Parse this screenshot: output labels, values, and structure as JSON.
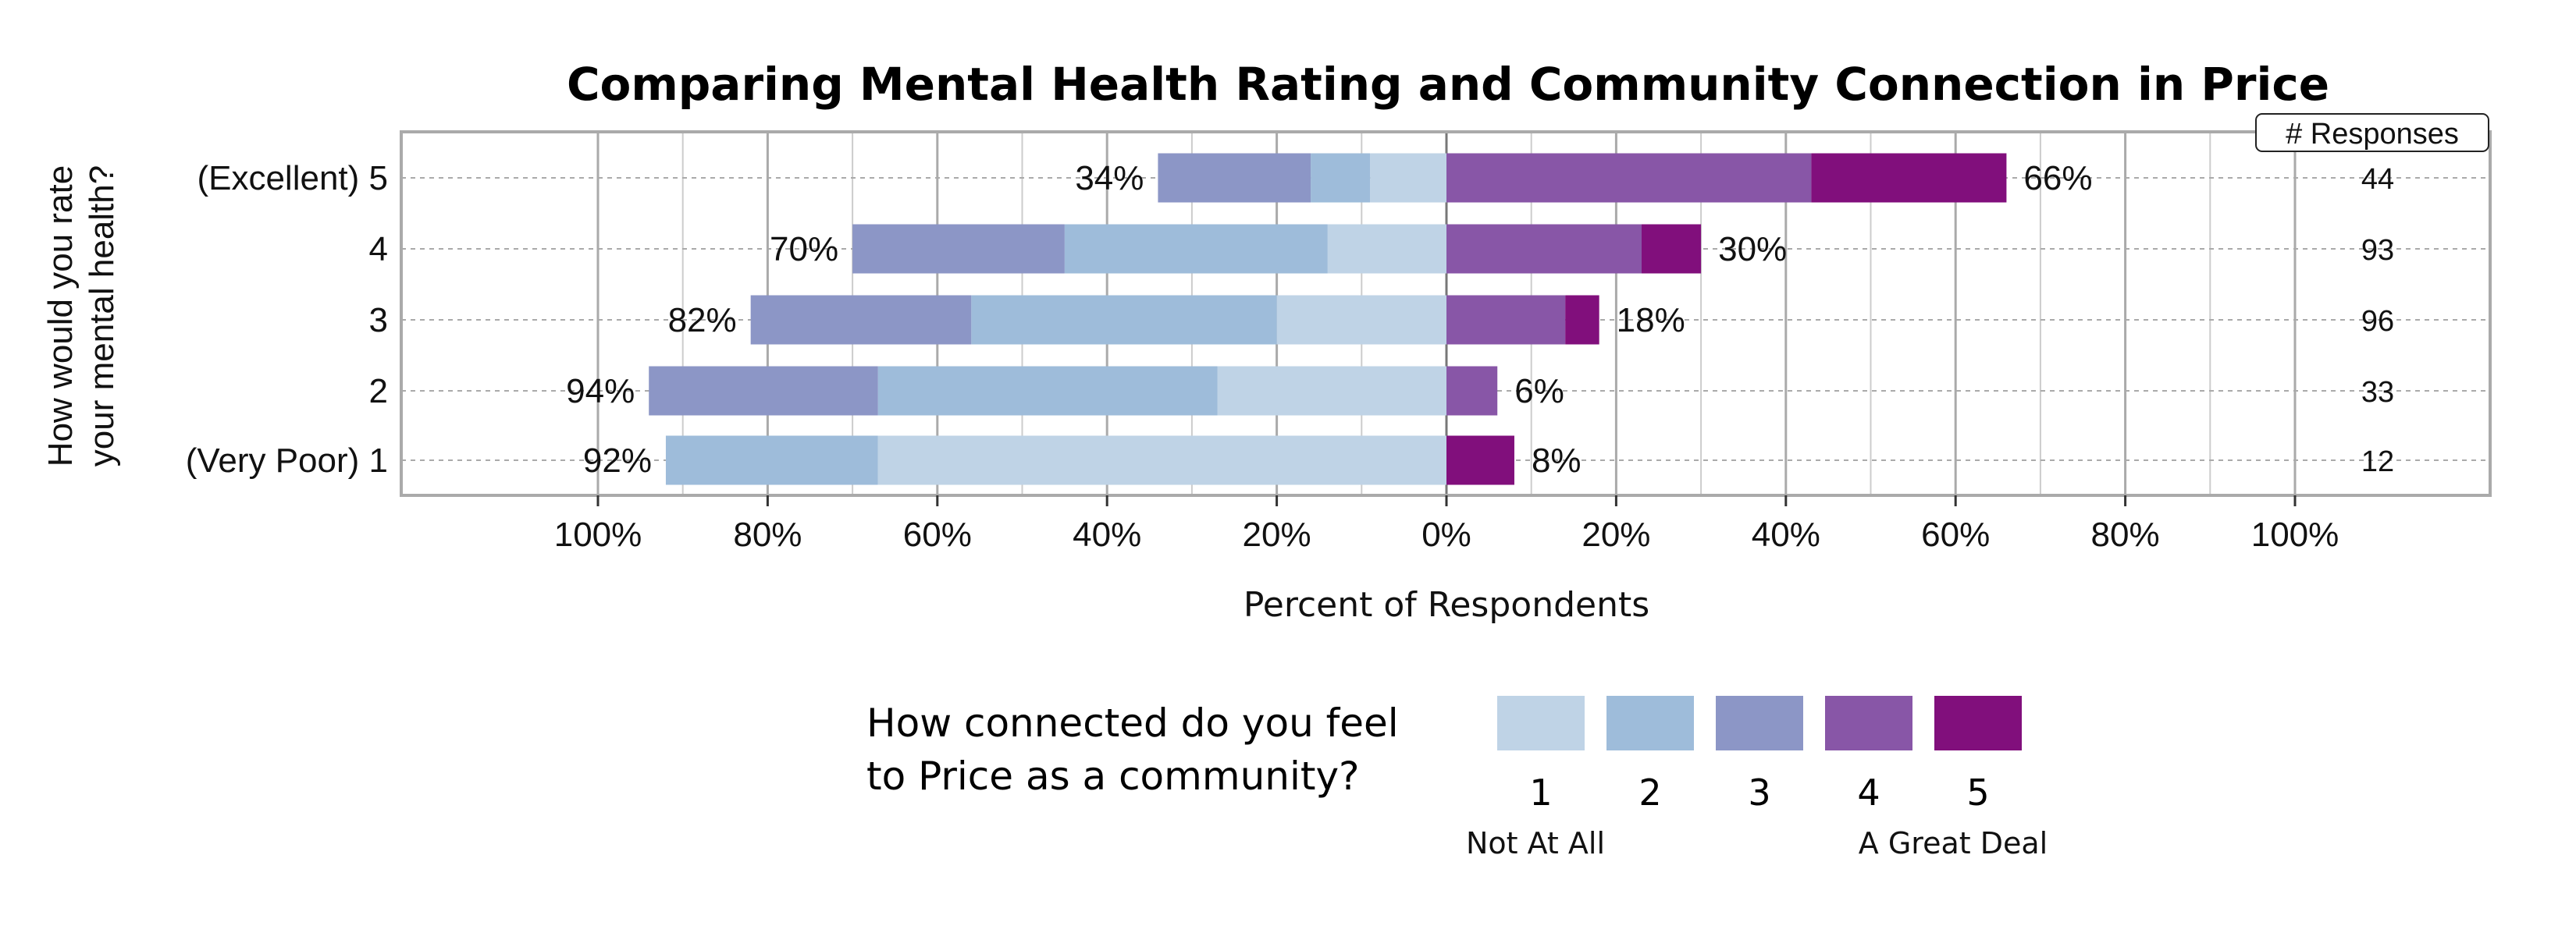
{
  "chart_data": {
    "type": "bar",
    "subtype": "diverging-stacked-horizontal",
    "title": "Comparing Mental Health Rating and Community Connection in Price",
    "ylabel": "How would you rate your mental health?",
    "xlabel": "Percent of Respondents",
    "xlim": [
      -100,
      100
    ],
    "xticks": [
      "100%",
      "80%",
      "60%",
      "40%",
      "20%",
      "0%",
      "20%",
      "40%",
      "60%",
      "80%",
      "100%"
    ],
    "grid": true,
    "responses_header": "# Responses",
    "categories": [
      "(Excellent) 5",
      "4",
      "3",
      "2",
      "(Very Poor) 1"
    ],
    "series": [
      {
        "name": "1",
        "color": "#bfd3e6",
        "side": "negative",
        "values": [
          9,
          14,
          20,
          27,
          67
        ]
      },
      {
        "name": "2",
        "color": "#9ebcda",
        "side": "negative",
        "values": [
          7,
          31,
          36,
          40,
          25
        ]
      },
      {
        "name": "3",
        "color": "#8c96c6",
        "side": "negative",
        "values": [
          18,
          25,
          26,
          27,
          0
        ]
      },
      {
        "name": "4",
        "color": "#8856a7",
        "side": "positive",
        "values": [
          43,
          23,
          14,
          6,
          0
        ]
      },
      {
        "name": "5",
        "color": "#810f7c",
        "side": "positive",
        "values": [
          23,
          7,
          4,
          0,
          8
        ]
      }
    ],
    "negative_totals": [
      "34%",
      "70%",
      "82%",
      "94%",
      "92%"
    ],
    "positive_totals": [
      "66%",
      "30%",
      "18%",
      "6%",
      "8%"
    ],
    "responses": [
      "44",
      "93",
      "96",
      "33",
      "12"
    ],
    "legend": {
      "title_line1": "How connected do you feel",
      "title_line2": "to Price as a community?",
      "low_label": "Not At All",
      "high_label": "A Great Deal",
      "placement": "bottom"
    }
  }
}
